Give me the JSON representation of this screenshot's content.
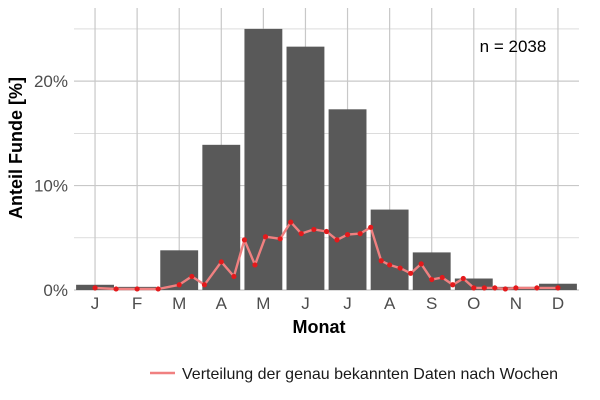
{
  "chart_data": {
    "type": "bar",
    "xlabel": "Monat",
    "ylabel": "Anteil Funde [%]",
    "categories": [
      "J",
      "F",
      "M",
      "A",
      "M",
      "J",
      "J",
      "A",
      "S",
      "O",
      "N",
      "D"
    ],
    "values": [
      0.5,
      0.3,
      3.8,
      13.9,
      25.0,
      23.3,
      17.3,
      7.7,
      3.6,
      1.1,
      0.3,
      0.6
    ],
    "ylim": [
      0,
      27
    ],
    "yticks": [
      0,
      10,
      20
    ],
    "ytick_labels": [
      "0%",
      "10%",
      "20%"
    ],
    "grid": true,
    "annotation": "n = 2038",
    "legend_position": "bottom",
    "series": [
      {
        "name": "Verteilung der genau bekannten Daten nach Wochen",
        "type": "line",
        "color": "#f08080",
        "marker_color": "#e31a1c",
        "x": [
          1,
          1.5,
          2,
          2.5,
          3,
          3.3,
          3.6,
          4,
          4.3,
          4.55,
          4.8,
          5.05,
          5.4,
          5.65,
          5.9,
          6.2,
          6.5,
          6.75,
          7.0,
          7.3,
          7.55,
          7.8,
          8.0,
          8.25,
          8.5,
          8.75,
          9.0,
          9.25,
          9.5,
          9.75,
          10.0,
          10.25,
          10.5,
          10.75,
          11.0,
          11.5,
          12
        ],
        "values": [
          0.2,
          0.1,
          0.1,
          0.1,
          0.5,
          1.3,
          0.5,
          2.7,
          1.3,
          4.8,
          2.4,
          5.1,
          4.9,
          6.5,
          5.4,
          5.8,
          5.6,
          4.8,
          5.3,
          5.4,
          6.0,
          2.8,
          2.4,
          2.1,
          1.6,
          2.5,
          1.0,
          1.2,
          0.5,
          1.1,
          0.2,
          0.2,
          0.2,
          0.1,
          0.2,
          0.2,
          0.2
        ]
      }
    ],
    "colors": {
      "bar": "#595959",
      "grid": "#c8c8c8",
      "line": "#f08080",
      "marker": "#e31a1c"
    }
  }
}
